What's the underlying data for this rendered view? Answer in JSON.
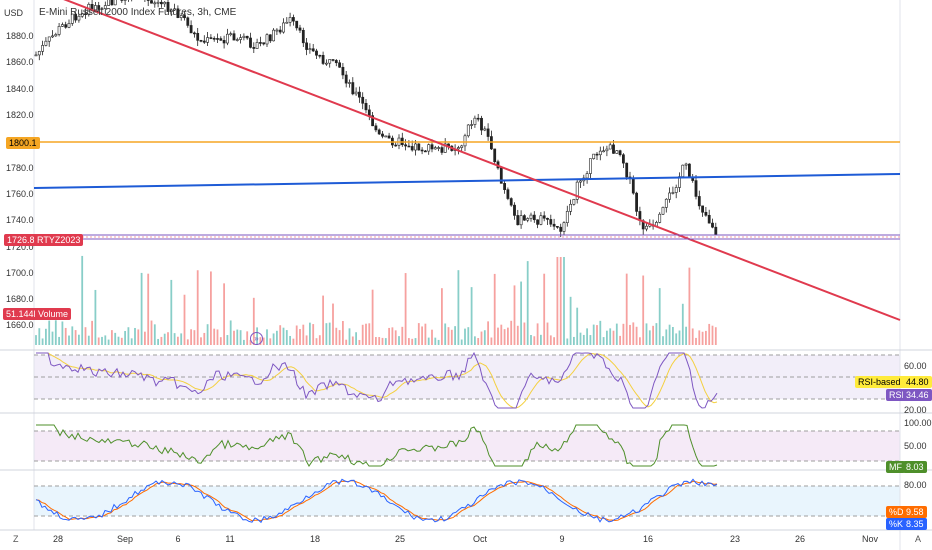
{
  "header": {
    "currency": "USD",
    "symbol_title": "E-Mini Russell 2000 Index Futures, 3h, CME"
  },
  "price_axis": {
    "labels": [
      "1880.0",
      "1860.0",
      "1840.0",
      "1820.0",
      "1800.0",
      "1780.0",
      "1760.0",
      "1740.0",
      "1720.0",
      "1700.0",
      "1680.0",
      "1660.0"
    ]
  },
  "tags": {
    "orange_line_price": "1800.1",
    "current_price": "1726.8",
    "contract": "RTYZ2023",
    "volume_value": "51.144K",
    "volume_label": "Volume"
  },
  "rsi": {
    "axis_labels": [
      "60.00",
      "20.00"
    ],
    "ma_label": "RSI-based MA",
    "ma_value": "44.80",
    "label": "RSI",
    "value": "34.46"
  },
  "mfi": {
    "axis_labels": [
      "100.00",
      "50.00"
    ],
    "label": "MF",
    "value": "8.03"
  },
  "stoch": {
    "axis_labels": [
      "80.00"
    ],
    "d_label": "%D",
    "d_value": "9.58",
    "k_label": "%K",
    "k_value": "8.35"
  },
  "x_axis": {
    "labels": [
      "28",
      "Sep",
      "6",
      "11",
      "18",
      "25",
      "Oct",
      "9",
      "16",
      "23",
      "26",
      "Nov"
    ]
  },
  "footer": {
    "left_btn": "Z",
    "right_btn": "A"
  },
  "colors": {
    "up": "#26a69a",
    "down": "#ef5350",
    "red_line": "#e03a4e",
    "blue_line": "#1e5bd6",
    "orange_line": "#f5a623",
    "purple_line": "#7e57c2",
    "mfi": "#4e8f2a",
    "stoch_k": "#2962ff",
    "stoch_d": "#ff6d00"
  },
  "icons": {
    "replay": "replay-icon"
  }
}
